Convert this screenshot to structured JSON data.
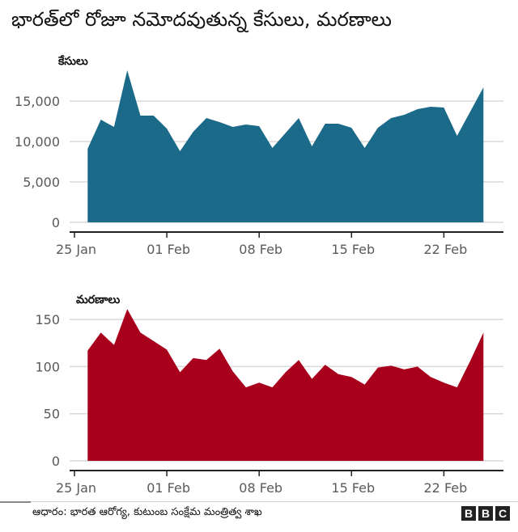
{
  "title": "భారత్‌లో రోజూ నమోదవుతున్న కేసులు, మరణాలు",
  "footer": {
    "source": "ఆధారం: భారత ఆరోగ్య, కుటుంబ సంక్షేమ మంత్రిత్వ శాఖ",
    "logo_letters": [
      "B",
      "B",
      "C"
    ]
  },
  "colors": {
    "cases": "#1b6a8a",
    "deaths": "#a8001c",
    "grid": "#d9d9d9",
    "axis": "#222222"
  },
  "chart_data": [
    {
      "type": "area",
      "title": "కేసులు",
      "xlabel": "",
      "ylabel": "",
      "x_tick_labels": [
        "25 Jan",
        "01 Feb",
        "08 Feb",
        "15 Feb",
        "22 Feb"
      ],
      "y_ticks": [
        0,
        5000,
        10000,
        15000
      ],
      "y_tick_labels": [
        "0",
        "5,000",
        "10,000",
        "15,000"
      ],
      "ylim": [
        0,
        19500
      ],
      "grid": true,
      "x": [
        "26 Jan",
        "27 Jan",
        "28 Jan",
        "29 Jan",
        "30 Jan",
        "31 Jan",
        "01 Feb",
        "02 Feb",
        "03 Feb",
        "04 Feb",
        "05 Feb",
        "06 Feb",
        "07 Feb",
        "08 Feb",
        "09 Feb",
        "10 Feb",
        "11 Feb",
        "12 Feb",
        "13 Feb",
        "14 Feb",
        "15 Feb",
        "16 Feb",
        "17 Feb",
        "18 Feb",
        "19 Feb",
        "20 Feb",
        "21 Feb",
        "22 Feb",
        "23 Feb",
        "24 Feb",
        "25 Feb"
      ],
      "values": [
        9100,
        12700,
        11800,
        18800,
        13200,
        13200,
        11600,
        8800,
        11200,
        12900,
        12400,
        11800,
        12100,
        11900,
        9200,
        11050,
        12900,
        9400,
        12200,
        12200,
        11700,
        9200,
        11700,
        12900,
        13300,
        14000,
        14300,
        14200,
        10700,
        13700,
        16700
      ]
    },
    {
      "type": "area",
      "title": "మరణాలు",
      "xlabel": "",
      "ylabel": "",
      "x_tick_labels": [
        "25 Jan",
        "01 Feb",
        "08 Feb",
        "15 Feb",
        "22 Feb"
      ],
      "y_ticks": [
        0,
        50,
        100,
        150
      ],
      "y_tick_labels": [
        "0",
        "50",
        "100",
        "150"
      ],
      "ylim": [
        0,
        165
      ],
      "grid": true,
      "x": [
        "26 Jan",
        "27 Jan",
        "28 Jan",
        "29 Jan",
        "30 Jan",
        "31 Jan",
        "01 Feb",
        "02 Feb",
        "03 Feb",
        "04 Feb",
        "05 Feb",
        "06 Feb",
        "07 Feb",
        "08 Feb",
        "09 Feb",
        "10 Feb",
        "11 Feb",
        "12 Feb",
        "13 Feb",
        "14 Feb",
        "15 Feb",
        "16 Feb",
        "17 Feb",
        "18 Feb",
        "19 Feb",
        "20 Feb",
        "21 Feb",
        "22 Feb",
        "23 Feb",
        "24 Feb",
        "25 Feb"
      ],
      "values": [
        117,
        136,
        123,
        161,
        136,
        127,
        118,
        94,
        109,
        107,
        119,
        95,
        78,
        83,
        78,
        94,
        107,
        87,
        102,
        92,
        89,
        81,
        99,
        101,
        97,
        100,
        89,
        83,
        78,
        106,
        136
      ]
    }
  ]
}
